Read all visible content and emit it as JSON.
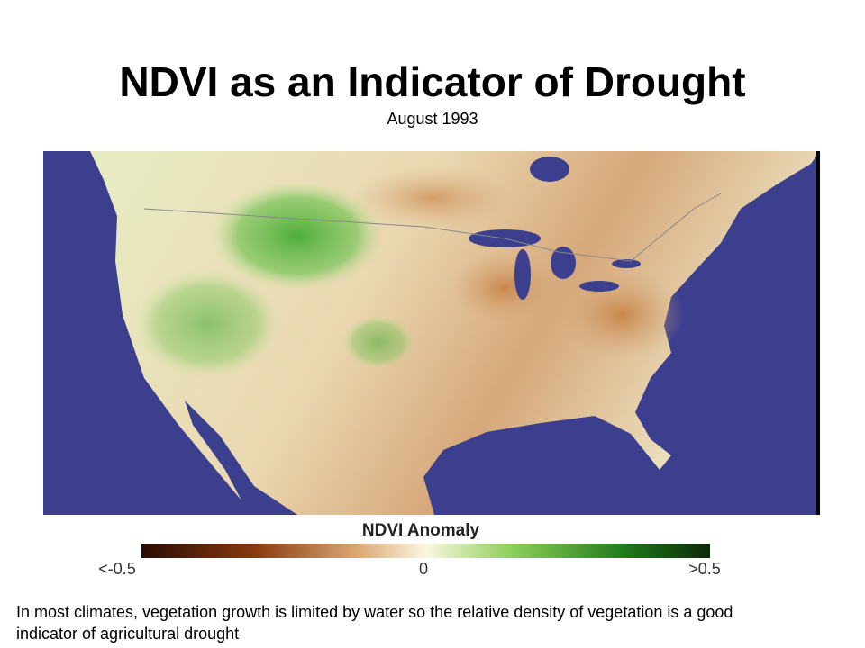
{
  "header": {
    "title": "NDVI as an Indicator of Drought",
    "subtitle": "August 1993"
  },
  "map": {
    "legend": {
      "title": "NDVI Anomaly",
      "min_label": "<-0.5",
      "mid_label": "0",
      "max_label": ">0.5"
    }
  },
  "caption": "In most climates, vegetation growth is limited by water so the relative density of vegetation is a good indicator of agricultural drought"
}
